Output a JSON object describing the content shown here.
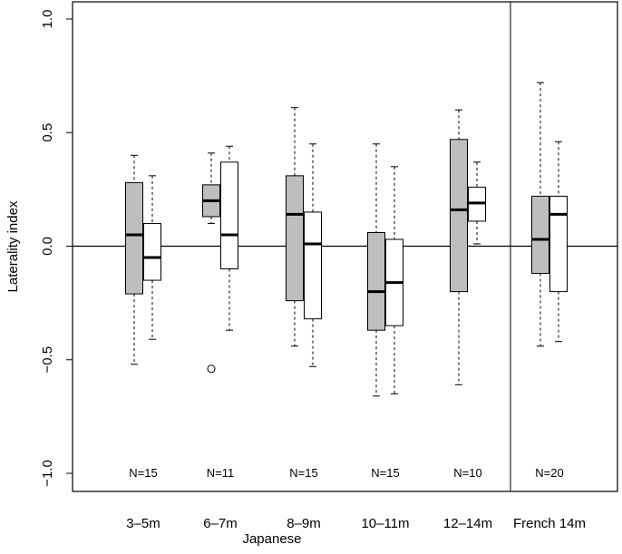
{
  "chart_data": {
    "type": "boxplot",
    "ylabel": "Laterality index",
    "xlabel": "Japanese",
    "ylim": [
      -1.0,
      1.0
    ],
    "yticks": [
      "−1.0",
      "−0.5",
      "0.0",
      "0.5",
      "1.0"
    ],
    "ytick_values": [
      -1.0,
      -0.5,
      0.0,
      0.5,
      1.0
    ],
    "reference_line": 0.0,
    "colors": {
      "box_a": "#bebebe",
      "box_b": "#ffffff",
      "stroke": "#000000"
    },
    "groups": [
      {
        "label": "3–5m",
        "n_label": "N=15",
        "boxes": [
          {
            "whisker_low": -0.52,
            "q1": -0.21,
            "median": 0.05,
            "q3": 0.28,
            "whisker_high": 0.4,
            "outliers": []
          },
          {
            "whisker_low": -0.41,
            "q1": -0.15,
            "median": -0.05,
            "q3": 0.1,
            "whisker_high": 0.31,
            "outliers": []
          }
        ]
      },
      {
        "label": "6–7m",
        "n_label": "N=11",
        "boxes": [
          {
            "whisker_low": 0.1,
            "q1": 0.13,
            "median": 0.2,
            "q3": 0.27,
            "whisker_high": 0.41,
            "outliers": [
              -0.54
            ]
          },
          {
            "whisker_low": -0.37,
            "q1": -0.1,
            "median": 0.05,
            "q3": 0.37,
            "whisker_high": 0.44,
            "outliers": []
          }
        ]
      },
      {
        "label": "8–9m",
        "n_label": "N=15",
        "boxes": [
          {
            "whisker_low": -0.44,
            "q1": -0.24,
            "median": 0.14,
            "q3": 0.31,
            "whisker_high": 0.61,
            "outliers": []
          },
          {
            "whisker_low": -0.53,
            "q1": -0.32,
            "median": 0.01,
            "q3": 0.15,
            "whisker_high": 0.45,
            "outliers": []
          }
        ]
      },
      {
        "label": "10–11m",
        "n_label": "N=15",
        "boxes": [
          {
            "whisker_low": -0.66,
            "q1": -0.37,
            "median": -0.2,
            "q3": 0.06,
            "whisker_high": 0.45,
            "outliers": []
          },
          {
            "whisker_low": -0.65,
            "q1": -0.35,
            "median": -0.16,
            "q3": 0.03,
            "whisker_high": 0.35,
            "outliers": []
          }
        ]
      },
      {
        "label": "12–14m",
        "n_label": "N=10",
        "boxes": [
          {
            "whisker_low": -0.61,
            "q1": -0.2,
            "median": 0.16,
            "q3": 0.47,
            "whisker_high": 0.6,
            "outliers": []
          },
          {
            "whisker_low": 0.01,
            "q1": 0.11,
            "median": 0.19,
            "q3": 0.26,
            "whisker_high": 0.37,
            "outliers": []
          }
        ]
      },
      {
        "label": "French 14m",
        "n_label": "N=20",
        "boxes": [
          {
            "whisker_low": -0.44,
            "q1": -0.12,
            "median": 0.03,
            "q3": 0.22,
            "whisker_high": 0.72,
            "outliers": []
          },
          {
            "whisker_low": -0.42,
            "q1": -0.2,
            "median": 0.14,
            "q3": 0.22,
            "whisker_high": 0.46,
            "outliers": []
          }
        ]
      }
    ]
  }
}
